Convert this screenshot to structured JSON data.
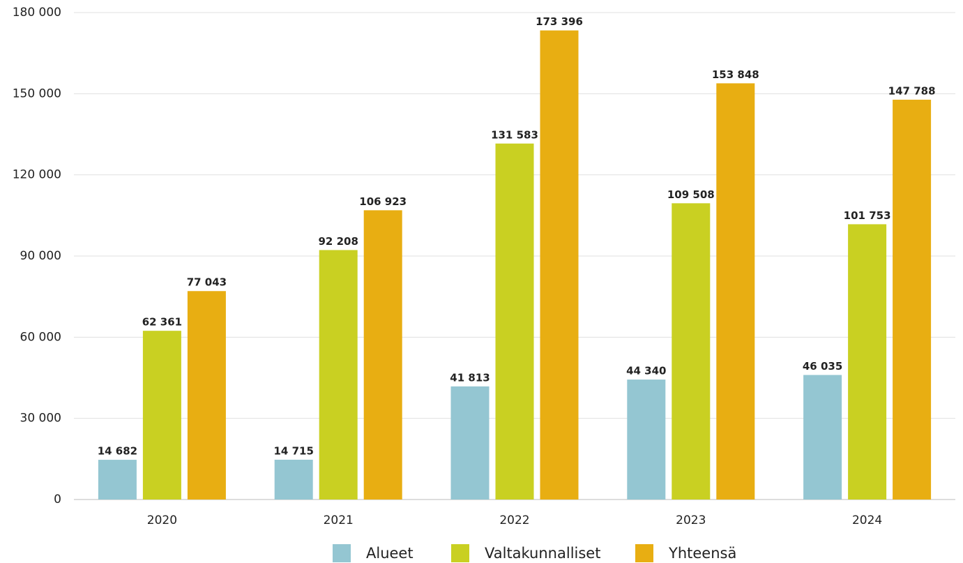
{
  "chart_data": {
    "type": "bar",
    "categories": [
      "2020",
      "2021",
      "2022",
      "2023",
      "2024"
    ],
    "series": [
      {
        "name": "Alueet",
        "color": "#94c6d2",
        "values": [
          14682,
          14715,
          41813,
          44340,
          46035
        ],
        "value_labels": [
          "14 682",
          "14 715",
          "41 813",
          "44 340",
          "46 035"
        ]
      },
      {
        "name": "Valtakunnalliset",
        "color": "#c9d022",
        "values": [
          62361,
          92208,
          131583,
          109508,
          101753
        ],
        "value_labels": [
          "62 361",
          "92 208",
          "131 583",
          "109 508",
          "101 753"
        ]
      },
      {
        "name": "Yhteensä",
        "color": "#e8ae12",
        "values": [
          77043,
          106923,
          173396,
          153848,
          147788
        ],
        "value_labels": [
          "77 043",
          "106 923",
          "173 396",
          "153 848",
          "147 788"
        ]
      }
    ],
    "ylim": [
      0,
      180000
    ],
    "yticks": [
      {
        "value": 0,
        "label": "0"
      },
      {
        "value": 30000,
        "label": "30 000"
      },
      {
        "value": 60000,
        "label": "60 000"
      },
      {
        "value": 90000,
        "label": "90 000"
      },
      {
        "value": 120000,
        "label": "120 000"
      },
      {
        "value": 150000,
        "label": "150 000"
      },
      {
        "value": 180000,
        "label": "180 000"
      }
    ],
    "grid": true,
    "legend": "bottom"
  }
}
